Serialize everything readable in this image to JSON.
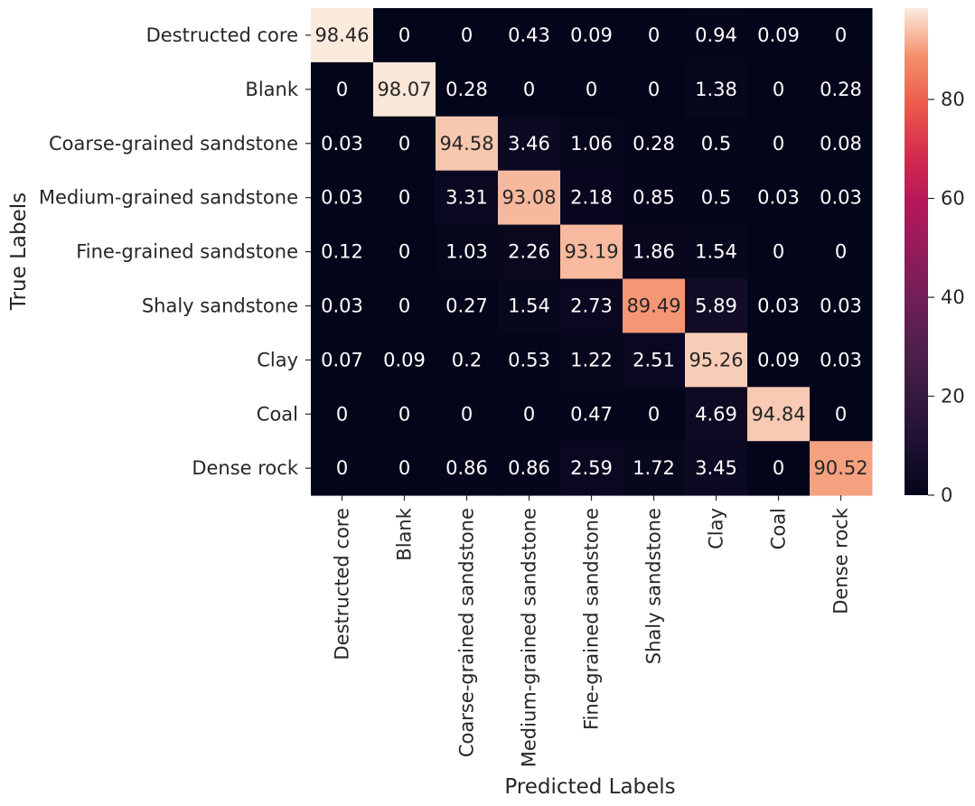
{
  "chart_data": {
    "type": "heatmap",
    "title": "",
    "xlabel": "Predicted Labels",
    "ylabel": "True Labels",
    "row_labels": [
      "Destructed core",
      "Blank",
      "Coarse-grained sandstone",
      "Medium-grained sandstone",
      "Fine-grained sandstone",
      "Shaly sandstone",
      "Clay",
      "Coal",
      "Dense rock"
    ],
    "col_labels": [
      "Destructed core",
      "Blank",
      "Coarse-grained sandstone",
      "Medium-grained sandstone",
      "Fine-grained sandstone",
      "Shaly sandstone",
      "Clay",
      "Coal",
      "Dense rock"
    ],
    "values": [
      [
        98.46,
        0,
        0,
        0.43,
        0.09,
        0,
        0.94,
        0.09,
        0
      ],
      [
        0,
        98.07,
        0.28,
        0,
        0,
        0,
        1.38,
        0,
        0.28
      ],
      [
        0.03,
        0,
        94.58,
        3.46,
        1.06,
        0.28,
        0.5,
        0,
        0.08
      ],
      [
        0.03,
        0,
        3.31,
        93.08,
        2.18,
        0.85,
        0.5,
        0.03,
        0.03
      ],
      [
        0.12,
        0,
        1.03,
        2.26,
        93.19,
        1.86,
        1.54,
        0,
        0
      ],
      [
        0.03,
        0,
        0.27,
        1.54,
        2.73,
        89.49,
        5.89,
        0.03,
        0.03
      ],
      [
        0.07,
        0.09,
        0.2,
        0.53,
        1.22,
        2.51,
        95.26,
        0.09,
        0.03
      ],
      [
        0,
        0,
        0,
        0,
        0.47,
        0,
        4.69,
        94.84,
        0
      ],
      [
        0,
        0,
        0.86,
        0.86,
        2.59,
        1.72,
        3.45,
        0,
        90.52
      ]
    ],
    "colorbar": {
      "min": 0,
      "max": 98.46,
      "ticks": [
        0,
        20,
        40,
        60,
        80
      ],
      "colormap": "rocket"
    }
  }
}
